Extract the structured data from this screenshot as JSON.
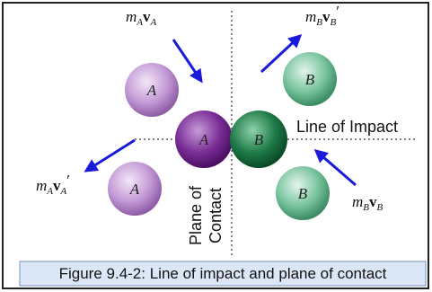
{
  "diagram": {
    "momentum_labels": [
      {
        "mass": "m",
        "mass_sub": "A",
        "velocity": "v",
        "velocity_sub": "A"
      },
      {
        "mass": "m",
        "mass_sub": "B",
        "velocity": "v",
        "velocity_sub": "B",
        "prime": "′"
      },
      {
        "mass": "m",
        "mass_sub": "A",
        "velocity": "v",
        "velocity_sub": "A",
        "prime": "′"
      },
      {
        "mass": "m",
        "mass_sub": "B",
        "velocity": "v",
        "velocity_sub": "B"
      }
    ],
    "balls": [
      {
        "label": "A"
      },
      {
        "label": "A"
      },
      {
        "label": "B"
      },
      {
        "label": "B"
      },
      {
        "label": "A"
      },
      {
        "label": "B"
      }
    ],
    "line_of_impact": "Line of Impact",
    "plane_of_contact": [
      "Plane of",
      "Contact"
    ],
    "caption": "Figure 9.4-2: Line of impact and plane of contact"
  }
}
